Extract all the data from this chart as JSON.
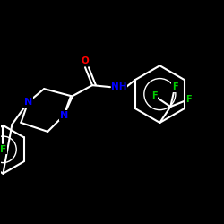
{
  "background": "#000000",
  "bond_color": "#ffffff",
  "atom_colors": {
    "N": "#0000ff",
    "O": "#ff0000",
    "F": "#00cc00",
    "C": "#ffffff",
    "H": "#ffffff"
  }
}
